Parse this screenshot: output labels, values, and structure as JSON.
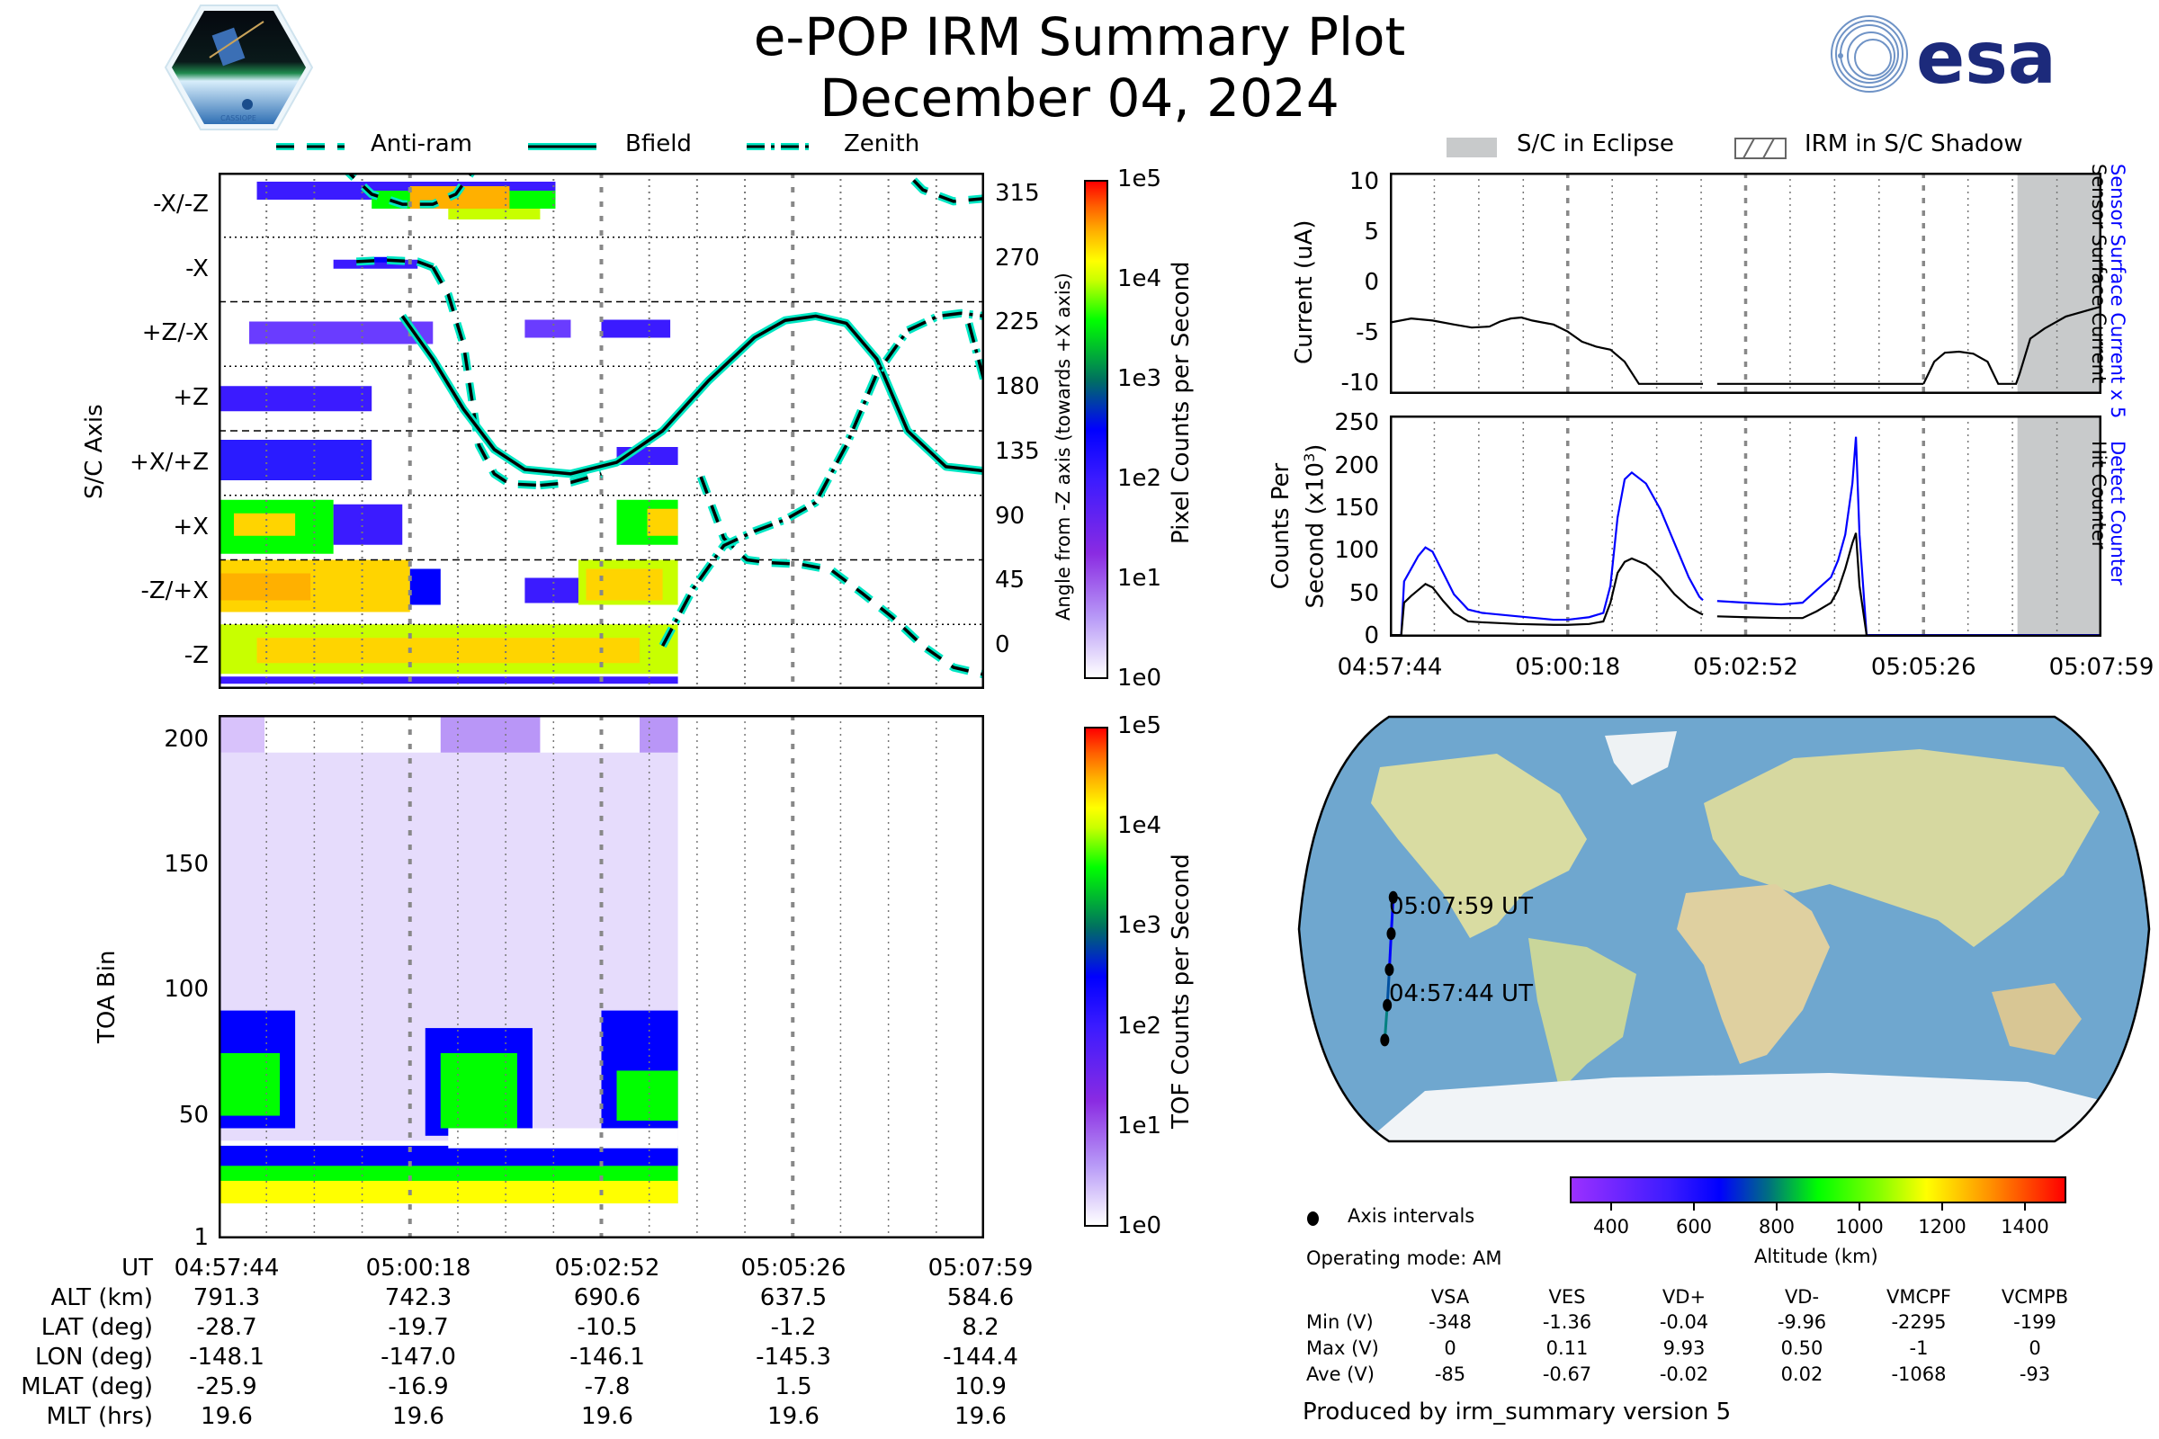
{
  "header": {
    "title": "e-POP IRM Summary Plot",
    "date": "December 04, 2024",
    "left_logo": "CASSIOPE",
    "right_logo": "esa"
  },
  "colors": {
    "curve_outline": "#00e6c3",
    "curve_core": "#000000",
    "detect_counter": "#0000ff",
    "hit_counter": "#000000",
    "eclipse_fill": "#c8cacb",
    "esa_blue": "#1c2a7b"
  },
  "legend_left": [
    {
      "label": "Anti-ram",
      "style": "dashed"
    },
    {
      "label": "Bfield",
      "style": "solid"
    },
    {
      "label": "Zenith",
      "style": "dashdot"
    }
  ],
  "legend_right": [
    {
      "label": "S/C in Eclipse",
      "style": "fill"
    },
    {
      "label": "IRM in S/C Shadow",
      "style": "hatch"
    }
  ],
  "chart_data": [
    {
      "name": "sc-axis-pixel-counts",
      "type": "heatmap",
      "ylabel": "S/C Axis",
      "y2label": "Angle from -Z axis (towards +X axis)",
      "yticklabels": [
        "-X/-Z",
        "-X",
        "+Z/-X",
        "+Z",
        "+X/+Z",
        "+X",
        "-Z/+X",
        "-Z"
      ],
      "y2ticks": [
        315,
        270,
        225,
        180,
        135,
        90,
        45,
        0
      ],
      "y2lim": [
        -30,
        330
      ],
      "x_range": [
        "04:57:44",
        "05:07:59"
      ],
      "colorbar": {
        "label": "Pixel Counts per Second",
        "scale": "log",
        "ticks": [
          "1e5",
          "1e4",
          "1e3",
          "1e2",
          "1e1",
          "1e0"
        ]
      },
      "series": [
        {
          "name": "Anti-ram",
          "style": "dashed",
          "segments": [
            {
              "x": [
                0.16,
                0.2,
                0.24,
                0.28,
                0.31,
                0.33
              ],
              "y": [
                335,
                315,
                308,
                308,
                315,
                330
              ]
            },
            {
              "x": [
                0.18,
                0.22,
                0.26,
                0.28
              ],
              "y": [
                268,
                269,
                268,
                264
              ]
            },
            {
              "x": [
                0.28,
                0.3,
                0.32,
                0.33,
                0.34,
                0.36,
                0.38,
                0.42
              ],
              "y": [
                264,
                245,
                210,
                175,
                140,
                120,
                113,
                112
              ]
            },
            {
              "x": [
                0.42,
                0.46,
                0.5
              ],
              "y": [
                112,
                114,
                120
              ]
            },
            {
              "x": [
                0.63,
                0.66,
                0.69,
                0.72,
                0.76,
                0.8,
                0.84,
                0.88,
                0.92,
                0.96,
                1.0
              ],
              "y": [
                118,
                75,
                60,
                58,
                57,
                53,
                37,
                20,
                0,
                -15,
                -20
              ]
            },
            {
              "x": [
                0.88,
                0.92,
                0.96,
                1.0
              ],
              "y": [
                340,
                318,
                310,
                312
              ]
            }
          ]
        },
        {
          "name": "Bfield",
          "style": "solid",
          "segments": [
            {
              "x": [
                0.24,
                0.28,
                0.32,
                0.36,
                0.4,
                0.46,
                0.52,
                0.58,
                0.64,
                0.7,
                0.74,
                0.78,
                0.82,
                0.86,
                0.9,
                0.95,
                1.0
              ],
              "y": [
                230,
                200,
                165,
                137,
                123,
                120,
                128,
                150,
                185,
                215,
                227,
                230,
                225,
                200,
                150,
                125,
                122
              ]
            }
          ]
        },
        {
          "name": "Zenith",
          "style": "dashdot",
          "segments": [
            {
              "x": [
                0.58,
                0.62,
                0.66,
                0.7,
                0.74,
                0.78,
                0.82,
                0.86,
                0.9,
                0.94,
                0.97,
                1.0
              ],
              "y": [
                0,
                40,
                70,
                80,
                88,
                100,
                140,
                190,
                220,
                230,
                232,
                230
              ]
            },
            {
              "x": [
                0.98,
                1.0
              ],
              "y": [
                225,
                185
              ]
            }
          ]
        }
      ]
    },
    {
      "name": "toa-tof-counts",
      "type": "heatmap",
      "ylabel": "TOA Bin",
      "yticks": [
        1,
        50,
        100,
        150,
        200
      ],
      "ylim": [
        1,
        210
      ],
      "x_range": [
        "04:57:44",
        "05:07:59"
      ],
      "colorbar": {
        "label": "TOF Counts per Second",
        "scale": "log",
        "ticks": [
          "1e5",
          "1e4",
          "1e3",
          "1e2",
          "1e1",
          "1e0"
        ]
      }
    },
    {
      "name": "sensor-surface-current",
      "type": "line",
      "ylabel": "Current (uA)",
      "yticks": [
        10,
        5,
        0,
        -5,
        -10
      ],
      "ylim": [
        -11,
        11
      ],
      "right_labels": [
        {
          "text": "Sensor Surface Current x 5",
          "color": "#0000ff"
        },
        {
          "text": "Sensor Surface Current",
          "color": "#000000"
        }
      ],
      "eclipse_range_frac": [
        0.882,
        1.0
      ],
      "series": [
        {
          "name": "Sensor Surface Current",
          "color": "#000000",
          "segments": [
            {
              "x": [
                0.0,
                0.03,
                0.06,
                0.09,
                0.115,
                0.14,
                0.155,
                0.17,
                0.185,
                0.2,
                0.215,
                0.23,
                0.25,
                0.27,
                0.29,
                0.31,
                0.33,
                0.35,
                0.38,
                0.42,
                0.44
              ],
              "y": [
                -3.9,
                -3.5,
                -3.7,
                -4.1,
                -4.4,
                -4.3,
                -3.8,
                -3.5,
                -3.4,
                -3.7,
                -3.9,
                -4.1,
                -4.8,
                -5.8,
                -6.3,
                -6.6,
                -7.8,
                -10.0,
                -10.0,
                -10.0,
                -10.0
              ]
            },
            {
              "x": [
                0.46,
                0.55,
                0.65,
                0.75
              ],
              "y": [
                -10.0,
                -10.0,
                -10.0,
                -10.0
              ]
            },
            {
              "x": [
                0.75,
                0.765,
                0.78,
                0.8,
                0.82,
                0.84,
                0.855,
                0.87,
                0.88,
                0.885,
                0.9,
                0.92,
                0.95,
                0.98,
                1.0
              ],
              "y": [
                -10.0,
                -7.8,
                -6.9,
                -6.8,
                -7.0,
                -7.8,
                -10.0,
                -10.0,
                -10.0,
                -9.0,
                -5.5,
                -4.5,
                -3.3,
                -2.7,
                -2.3
              ]
            }
          ]
        }
      ]
    },
    {
      "name": "counter-rates",
      "type": "line",
      "ylabel": "Counts Per Second (x10³)",
      "yticks": [
        0,
        50,
        100,
        150,
        200,
        250
      ],
      "ylim": [
        0,
        260
      ],
      "xticks": [
        "04:57:44",
        "05:00:18",
        "05:02:52",
        "05:05:26",
        "05:07:59"
      ],
      "right_labels": [
        {
          "text": "Detect Counter",
          "color": "#0000ff"
        },
        {
          "text": "Hit Counter",
          "color": "#000000"
        }
      ],
      "eclipse_range_frac": [
        0.882,
        1.0
      ],
      "series": [
        {
          "name": "Detect Counter",
          "color": "#0000ff",
          "segments": [
            {
              "x": [
                0.0,
                0.016,
                0.02,
                0.03,
                0.04,
                0.05,
                0.06,
                0.075,
                0.09,
                0.11,
                0.13,
                0.18,
                0.23,
                0.25,
                0.28,
                0.3,
                0.31,
                0.32,
                0.33,
                0.34,
                0.36,
                0.38,
                0.4,
                0.42,
                0.435,
                0.44
              ],
              "y": [
                2,
                2,
                65,
                80,
                95,
                105,
                100,
                75,
                50,
                32,
                28,
                24,
                20,
                20,
                23,
                28,
                60,
                140,
                185,
                193,
                180,
                150,
                110,
                70,
                47,
                43
              ]
            },
            {
              "x": [
                0.46,
                0.5,
                0.55,
                0.58,
                0.6,
                0.62,
                0.63,
                0.64,
                0.65,
                0.655,
                0.66,
                0.67
              ],
              "y": [
                42,
                40,
                38,
                40,
                55,
                70,
                90,
                120,
                180,
                235,
                120,
                2
              ]
            },
            {
              "x": [
                0.67,
                0.8,
                0.9,
                1.0
              ],
              "y": [
                2,
                2,
                2,
                2
              ]
            }
          ]
        },
        {
          "name": "Hit Counter",
          "color": "#000000",
          "segments": [
            {
              "x": [
                0.0,
                0.016,
                0.02,
                0.03,
                0.04,
                0.05,
                0.06,
                0.075,
                0.09,
                0.11,
                0.13,
                0.18,
                0.23,
                0.25,
                0.28,
                0.3,
                0.31,
                0.32,
                0.33,
                0.34,
                0.36,
                0.38,
                0.4,
                0.42,
                0.435,
                0.44
              ],
              "y": [
                2,
                2,
                40,
                48,
                55,
                62,
                58,
                42,
                28,
                18,
                17,
                15,
                14,
                14,
                15,
                18,
                40,
                75,
                88,
                92,
                85,
                70,
                50,
                35,
                28,
                26
              ]
            },
            {
              "x": [
                0.46,
                0.5,
                0.55,
                0.58,
                0.6,
                0.62,
                0.63,
                0.64,
                0.65,
                0.655,
                0.66,
                0.67
              ],
              "y": [
                24,
                23,
                22,
                22,
                30,
                40,
                55,
                80,
                110,
                122,
                60,
                2
              ]
            }
          ]
        }
      ]
    },
    {
      "name": "orbit-map",
      "type": "scatter",
      "track_labels": [
        "05:07:59 UT",
        "04:57:44 UT"
      ],
      "colorbar": {
        "label": "Altitude (km)",
        "ticks": [
          400,
          600,
          800,
          1000,
          1200,
          1400
        ],
        "range": [
          300,
          1500
        ]
      },
      "legend": "Axis intervals",
      "points": [
        {
          "lat": -28.7,
          "lon": -148.1
        },
        {
          "lat": -19.7,
          "lon": -147.0
        },
        {
          "lat": -10.5,
          "lon": -146.1
        },
        {
          "lat": -1.2,
          "lon": -145.3
        },
        {
          "lat": 8.2,
          "lon": -144.4
        }
      ]
    }
  ],
  "ephemeris_table": {
    "row_labels": [
      "UT",
      "ALT (km)",
      "LAT (deg)",
      "LON (deg)",
      "MLAT (deg)",
      "MLT (hrs)"
    ],
    "columns": [
      [
        "04:57:44",
        "791.3",
        "-28.7",
        "-148.1",
        "-25.9",
        "19.6"
      ],
      [
        "05:00:18",
        "742.3",
        "-19.7",
        "-147.0",
        "-16.9",
        "19.6"
      ],
      [
        "05:02:52",
        "690.6",
        "-10.5",
        "-146.1",
        "-7.8",
        "19.6"
      ],
      [
        "05:05:26",
        "637.5",
        "-1.2",
        "-145.3",
        "1.5",
        "19.6"
      ],
      [
        "05:07:59",
        "584.6",
        "8.2",
        "-144.4",
        "10.9",
        "19.6"
      ]
    ]
  },
  "operating_mode": "Operating mode: AM",
  "axis_intervals_label": "Axis intervals",
  "voltage_table": {
    "headers": [
      "VSA",
      "VES",
      "VD+",
      "VD-",
      "VMCPF",
      "VCMPB"
    ],
    "rows": [
      {
        "label": "Min (V)",
        "values": [
          "-348",
          "-1.36",
          "-0.04",
          "-9.96",
          "-2295",
          "-199"
        ]
      },
      {
        "label": "Max (V)",
        "values": [
          "0",
          "0.11",
          "9.93",
          "0.50",
          "-1",
          "0"
        ]
      },
      {
        "label": "Ave (V)",
        "values": [
          "-85",
          "-0.67",
          "-0.02",
          "0.02",
          "-1068",
          "-93"
        ]
      }
    ]
  },
  "footer": "Produced by irm_summary version 5"
}
